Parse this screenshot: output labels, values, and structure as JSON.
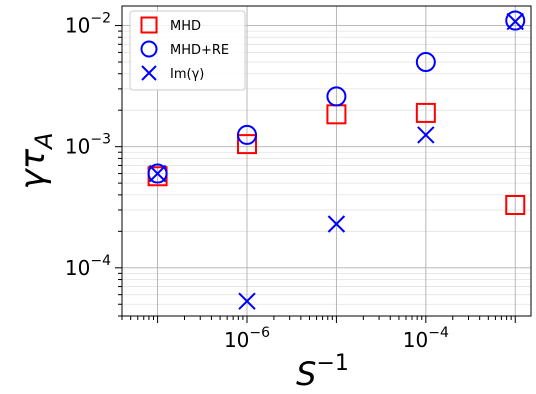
{
  "chart_data": {
    "type": "scatter",
    "xscale": "log",
    "yscale": "log",
    "xlim": [
      4e-08,
      0.0015
    ],
    "ylim": [
      4e-05,
      0.0145
    ],
    "x_ticks": [
      {
        "value": 1e-06,
        "label": "10",
        "exp": "−6"
      },
      {
        "value": 0.0001,
        "label": "10",
        "exp": "−4"
      }
    ],
    "y_ticks": [
      {
        "value": 0.0001,
        "label": "10",
        "exp": "−4"
      },
      {
        "value": 0.001,
        "label": "10",
        "exp": "−3"
      },
      {
        "value": 0.01,
        "label": "10",
        "exp": "−2"
      }
    ],
    "xlabel": {
      "base": "S",
      "exp": "−1"
    },
    "ylabel": {
      "base": "γτ",
      "sub": "A"
    },
    "grid": true,
    "legend_position": "top-left",
    "x": [
      1e-07,
      1e-06,
      1e-05,
      0.0001,
      0.001
    ],
    "series": [
      {
        "name": "MHD",
        "marker": "square",
        "color": "#ff0000",
        "values": [
          0.00057,
          0.00105,
          0.00185,
          0.0019,
          0.00033
        ]
      },
      {
        "name": "MHD+RE",
        "marker": "circle",
        "color": "#0000ff",
        "values": [
          0.0006,
          0.00125,
          0.0026,
          0.005,
          0.011
        ]
      },
      {
        "name": "Im(γ)",
        "marker": "x",
        "color": "#0000ff",
        "values": [
          0.0006,
          5.3e-05,
          0.00023,
          0.00125,
          0.0108
        ]
      }
    ]
  }
}
